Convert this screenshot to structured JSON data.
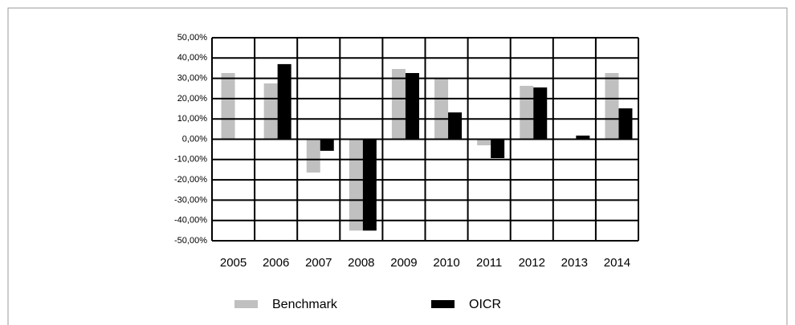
{
  "chart_data": {
    "type": "bar",
    "categories": [
      "2005",
      "2006",
      "2007",
      "2008",
      "2009",
      "2010",
      "2011",
      "2012",
      "2013",
      "2014"
    ],
    "series": [
      {
        "name": "Benchmark",
        "color": "#c0c0c0",
        "values": [
          32.6,
          27.5,
          -16.4,
          -45,
          34.6,
          29.8,
          -3,
          26.3,
          null,
          32.6
        ]
      },
      {
        "name": "OICR",
        "color": "#000000",
        "values": [
          null,
          37,
          -5.7,
          -45,
          32.6,
          13.2,
          -9.3,
          25.5,
          1.8,
          15.2
        ]
      }
    ],
    "ylim": [
      -50,
      50
    ],
    "yticks": [
      {
        "value": -50,
        "label": "-50,00%"
      },
      {
        "value": -40,
        "label": "-40,00%"
      },
      {
        "value": -30,
        "label": "-30,00%"
      },
      {
        "value": -20,
        "label": "-20,00%"
      },
      {
        "value": -10,
        "label": "-10,00%"
      },
      {
        "value": 0,
        "label": "0,00%"
      },
      {
        "value": 10,
        "label": "10,00%"
      },
      {
        "value": 20,
        "label": "20,00%"
      },
      {
        "value": 30,
        "label": "30,00%"
      },
      {
        "value": 40,
        "label": "40,00%"
      },
      {
        "value": 50,
        "label": "50,00%"
      }
    ],
    "grid": true
  }
}
